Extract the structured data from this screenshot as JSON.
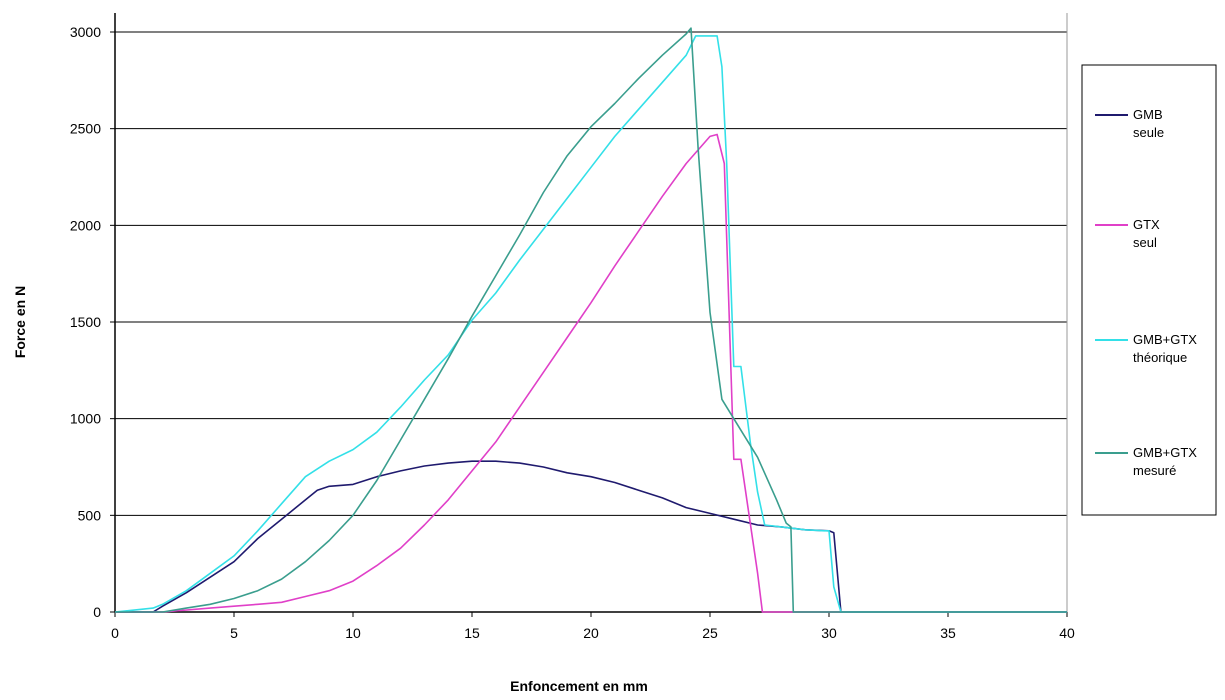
{
  "chart_data": {
    "type": "line",
    "title": "",
    "xlabel": "Enfoncement   en mm",
    "ylabel": "Force  en N",
    "xlim": [
      0,
      40
    ],
    "ylim": [
      0,
      3000
    ],
    "x_ticks": [
      0,
      5,
      10,
      15,
      20,
      25,
      30,
      35,
      40
    ],
    "y_ticks": [
      0,
      500,
      1000,
      1500,
      2000,
      2500,
      3000
    ],
    "grid": "horizontal",
    "legend_position": "right",
    "series": [
      {
        "name": "GMB seule",
        "color": "#1f1a6e",
        "points": [
          [
            0,
            0
          ],
          [
            1.6,
            0
          ],
          [
            2,
            30
          ],
          [
            3,
            100
          ],
          [
            4,
            180
          ],
          [
            5,
            260
          ],
          [
            6,
            380
          ],
          [
            7,
            480
          ],
          [
            8,
            580
          ],
          [
            8.5,
            630
          ],
          [
            9,
            650
          ],
          [
            10,
            660
          ],
          [
            11,
            700
          ],
          [
            12,
            730
          ],
          [
            13,
            755
          ],
          [
            14,
            770
          ],
          [
            15,
            780
          ],
          [
            16,
            780
          ],
          [
            17,
            770
          ],
          [
            18,
            750
          ],
          [
            19,
            720
          ],
          [
            20,
            700
          ],
          [
            21,
            670
          ],
          [
            22,
            630
          ],
          [
            23,
            590
          ],
          [
            24,
            540
          ],
          [
            25,
            510
          ],
          [
            26,
            480
          ],
          [
            27,
            450
          ],
          [
            28,
            440
          ],
          [
            29,
            425
          ],
          [
            30,
            420
          ],
          [
            30.2,
            410
          ],
          [
            30.5,
            0
          ],
          [
            40,
            0
          ]
        ]
      },
      {
        "name": "GTX seul",
        "color": "#e040c8",
        "points": [
          [
            0,
            0
          ],
          [
            2,
            0
          ],
          [
            4,
            20
          ],
          [
            5,
            30
          ],
          [
            6,
            40
          ],
          [
            7,
            50
          ],
          [
            8,
            80
          ],
          [
            9,
            110
          ],
          [
            10,
            160
          ],
          [
            11,
            240
          ],
          [
            12,
            330
          ],
          [
            13,
            450
          ],
          [
            14,
            580
          ],
          [
            15,
            730
          ],
          [
            16,
            880
          ],
          [
            17,
            1060
          ],
          [
            18,
            1240
          ],
          [
            19,
            1420
          ],
          [
            20,
            1600
          ],
          [
            21,
            1790
          ],
          [
            22,
            1970
          ],
          [
            23,
            2150
          ],
          [
            24,
            2320
          ],
          [
            25,
            2460
          ],
          [
            25.3,
            2470
          ],
          [
            25.6,
            2320
          ],
          [
            26,
            790
          ],
          [
            26.3,
            790
          ],
          [
            27,
            200
          ],
          [
            27.2,
            0
          ],
          [
            40,
            0
          ]
        ]
      },
      {
        "name": "GMB+GTX théorique",
        "color": "#33e0e8",
        "points": [
          [
            0,
            0
          ],
          [
            1.6,
            20
          ],
          [
            2,
            40
          ],
          [
            3,
            110
          ],
          [
            4,
            200
          ],
          [
            5,
            290
          ],
          [
            6,
            420
          ],
          [
            7,
            560
          ],
          [
            8,
            700
          ],
          [
            9,
            780
          ],
          [
            10,
            840
          ],
          [
            11,
            930
          ],
          [
            12,
            1060
          ],
          [
            13,
            1200
          ],
          [
            14,
            1330
          ],
          [
            15,
            1510
          ],
          [
            16,
            1650
          ],
          [
            17,
            1820
          ],
          [
            18,
            1980
          ],
          [
            19,
            2140
          ],
          [
            20,
            2300
          ],
          [
            21,
            2460
          ],
          [
            22,
            2600
          ],
          [
            23,
            2740
          ],
          [
            24,
            2880
          ],
          [
            24.4,
            2980
          ],
          [
            25,
            2980
          ],
          [
            25.3,
            2980
          ],
          [
            25.5,
            2820
          ],
          [
            25.7,
            2320
          ],
          [
            26,
            1270
          ],
          [
            26.3,
            1270
          ],
          [
            26.7,
            870
          ],
          [
            27,
            620
          ],
          [
            27.3,
            450
          ],
          [
            28,
            440
          ],
          [
            29,
            425
          ],
          [
            29.8,
            420
          ],
          [
            30,
            420
          ],
          [
            30.2,
            130
          ],
          [
            30.5,
            0
          ],
          [
            40,
            0
          ]
        ]
      },
      {
        "name": "GMB+GTX mesuré",
        "color": "#3a9e8e",
        "points": [
          [
            0,
            0
          ],
          [
            2,
            0
          ],
          [
            3,
            20
          ],
          [
            4,
            40
          ],
          [
            5,
            70
          ],
          [
            6,
            110
          ],
          [
            7,
            170
          ],
          [
            8,
            260
          ],
          [
            9,
            370
          ],
          [
            10,
            500
          ],
          [
            11,
            680
          ],
          [
            12,
            890
          ],
          [
            13,
            1100
          ],
          [
            14,
            1310
          ],
          [
            15,
            1530
          ],
          [
            16,
            1740
          ],
          [
            17,
            1950
          ],
          [
            18,
            2170
          ],
          [
            19,
            2360
          ],
          [
            20,
            2510
          ],
          [
            21,
            2630
          ],
          [
            22,
            2760
          ],
          [
            23,
            2880
          ],
          [
            24,
            2990
          ],
          [
            24.2,
            3020
          ],
          [
            24.5,
            2400
          ],
          [
            25,
            1550
          ],
          [
            25.5,
            1100
          ],
          [
            26,
            1000
          ],
          [
            27,
            800
          ],
          [
            27.8,
            580
          ],
          [
            28.2,
            460
          ],
          [
            28.4,
            440
          ],
          [
            28.5,
            0
          ],
          [
            40,
            0
          ]
        ]
      }
    ]
  }
}
